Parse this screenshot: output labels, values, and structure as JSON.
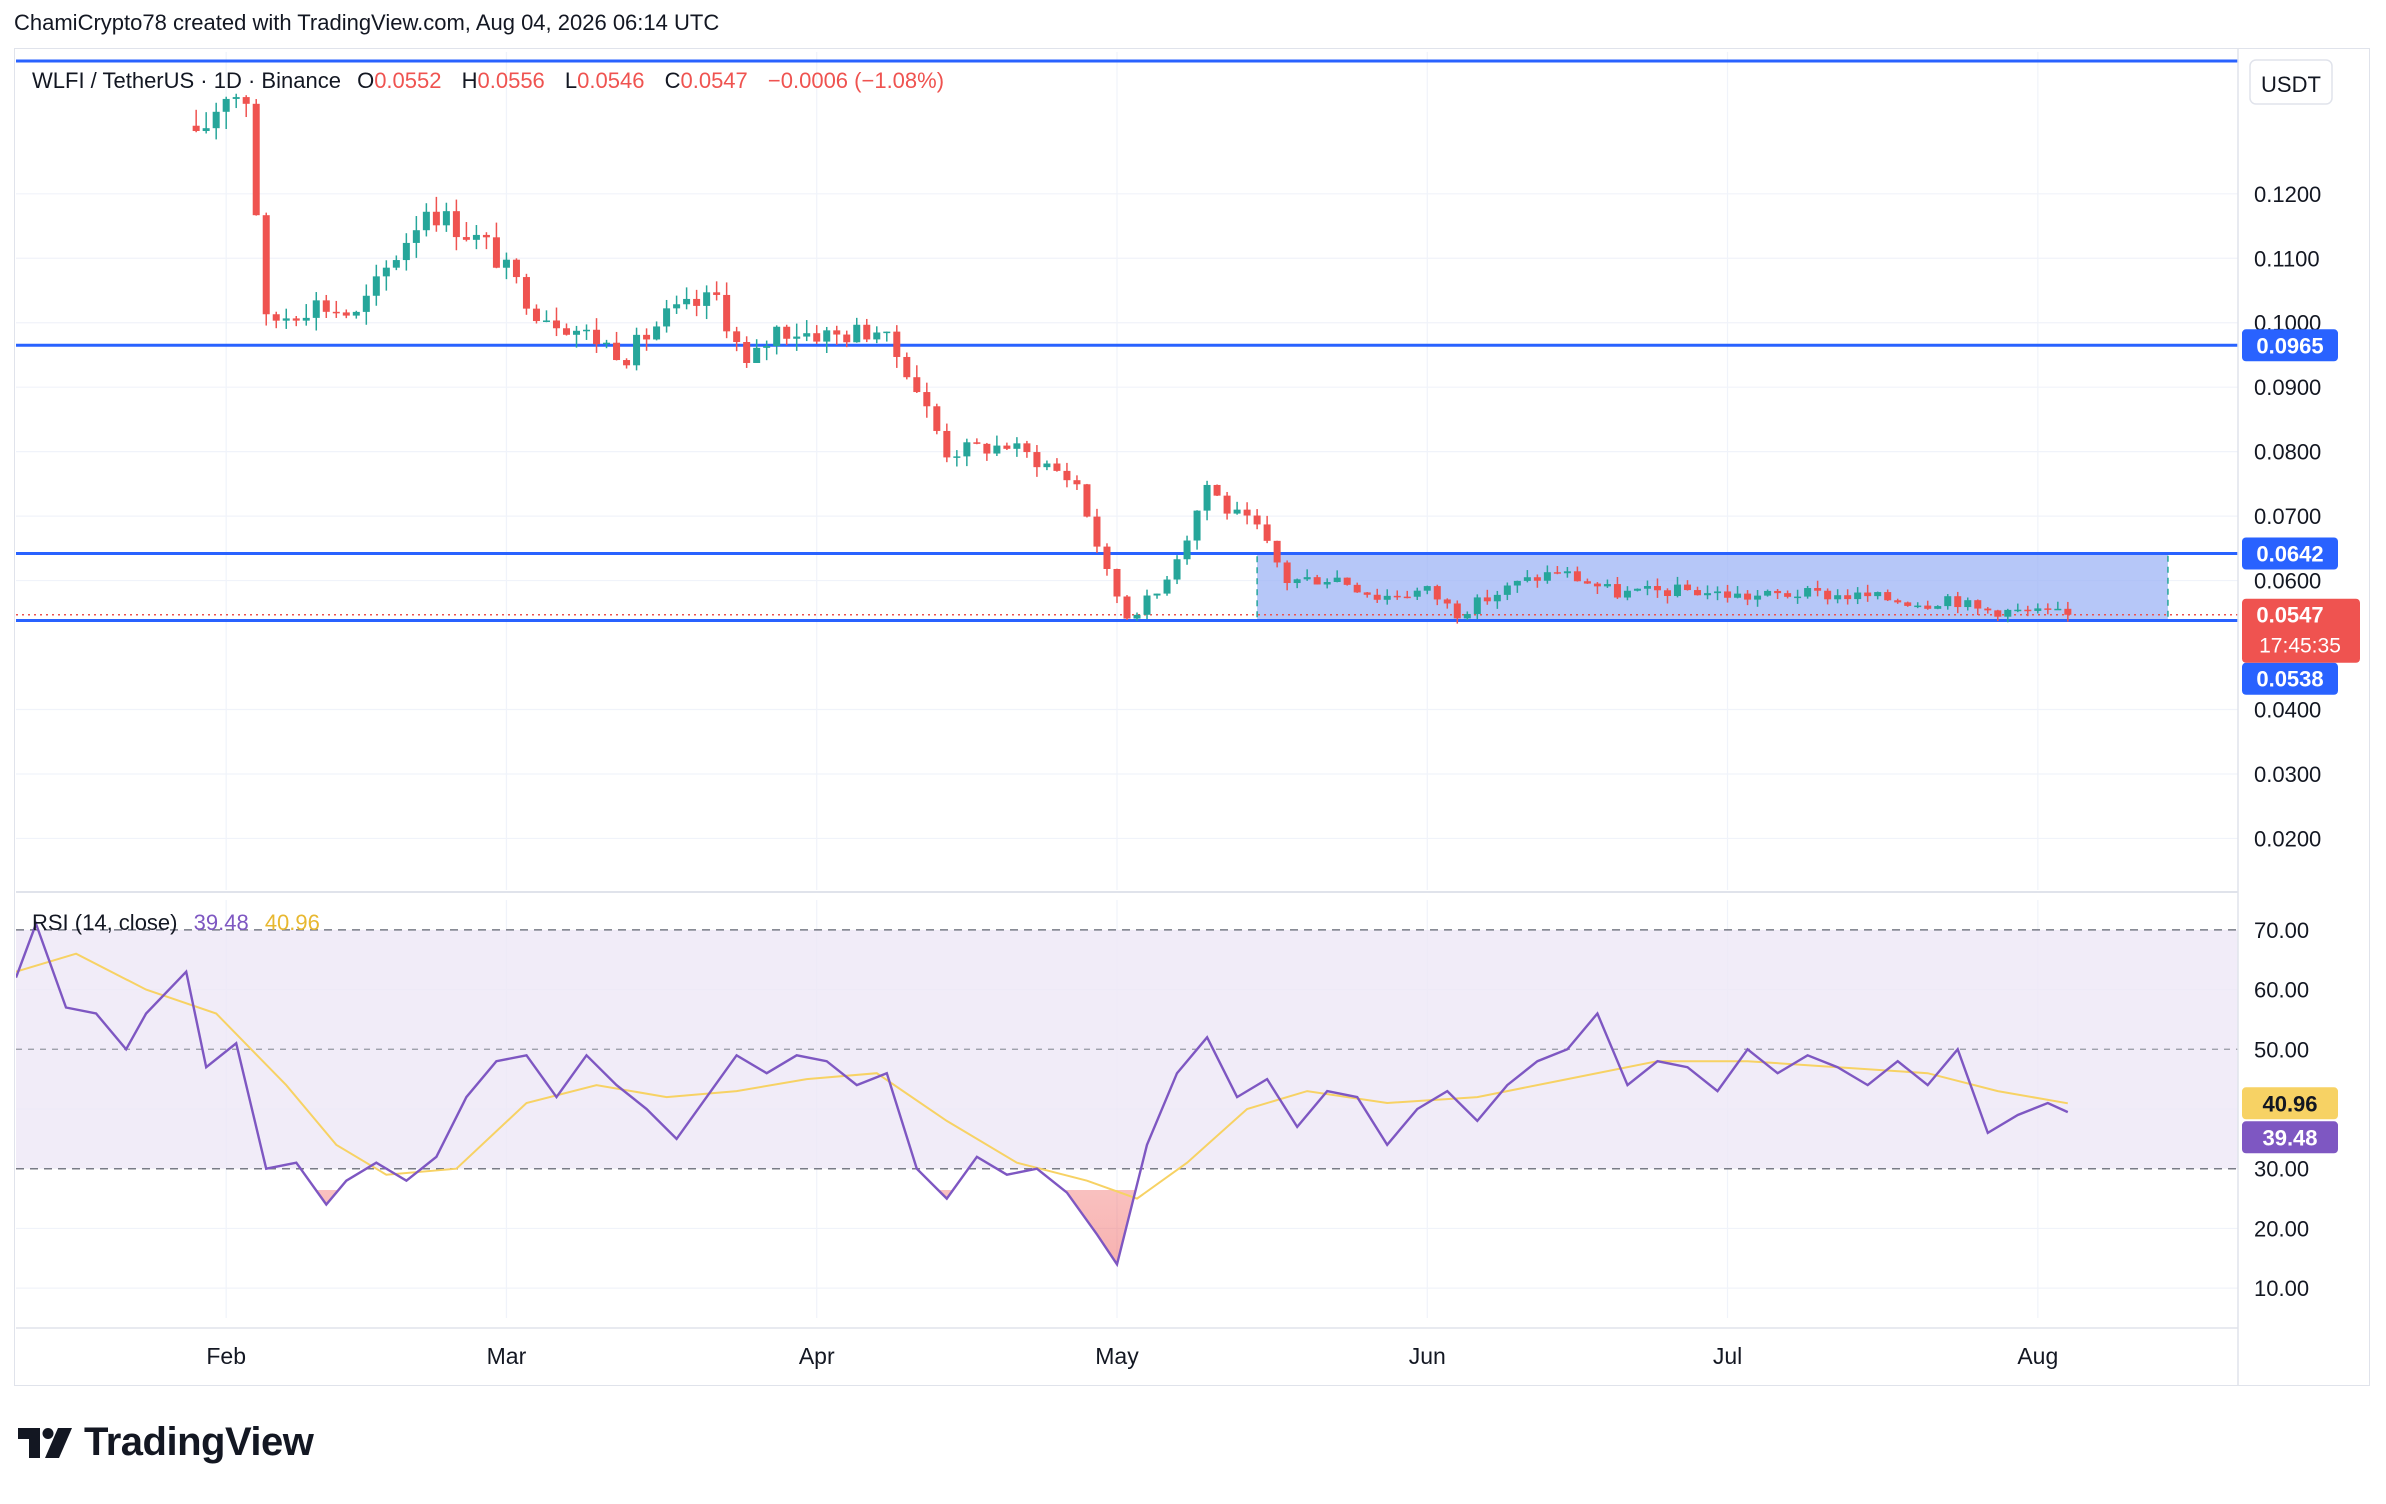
{
  "header": {
    "credit": "ChamiCrypto78 created with TradingView.com, Aug 04, 2026 06:14 UTC"
  },
  "legend": {
    "symbol": "WLFI / TetherUS · 1D · Binance",
    "o_label": "O",
    "o_value": "0.0552",
    "h_label": "H",
    "h_value": "0.0556",
    "l_label": "L",
    "l_value": "0.0546",
    "c_label": "C",
    "c_value": "0.0547",
    "change": "−0.0006 (−1.08%)"
  },
  "currency": "USDT",
  "brand": "TradingView",
  "colors": {
    "up": "#26a69a",
    "down": "#ef5350",
    "level": "#2962ff",
    "zone": "#9db4f5",
    "rsi_line": "#7e57c2",
    "rsi_ma": "#f7d264",
    "rsi_band": "#ede7f6"
  },
  "chart_data": [
    {
      "type": "candlestick",
      "title": "WLFI / TetherUS · 1D · Binance",
      "ylim": [
        0.012,
        0.142
      ],
      "y_ticks": [
        "0.1200",
        "0.1100",
        "0.1000",
        "0.0900",
        "0.0800",
        "0.0700",
        "0.0600",
        "0.0400",
        "0.0300",
        "0.0200"
      ],
      "y_tick_values": [
        0.12,
        0.11,
        0.1,
        0.09,
        0.08,
        0.07,
        0.06,
        0.04,
        0.03,
        0.02
      ],
      "x_ticks": [
        "Feb",
        "Mar",
        "Apr",
        "May",
        "Jun",
        "Jul",
        "Aug"
      ],
      "x_tick_dates": [
        "2026-02-01",
        "2026-03-01",
        "2026-04-01",
        "2026-05-01",
        "2026-06-01",
        "2026-07-01",
        "2026-08-01"
      ],
      "x_range": [
        "2026-01-11",
        "2026-08-21"
      ],
      "last_bar_date": "2026-08-04",
      "horizontal_levels": [
        0.1406,
        0.0965,
        0.0642,
        0.0538
      ],
      "level_labels": [
        {
          "value": 0.0965,
          "text": "0.0965",
          "bg": "#2962ff"
        },
        {
          "value": 0.0642,
          "text": "0.0642",
          "bg": "#2962ff"
        },
        {
          "value": 0.0538,
          "text": "0.0538",
          "bg": "#2962ff"
        }
      ],
      "last_price": {
        "value": 0.0547,
        "text": "0.0547",
        "countdown": "17:45:35",
        "bg": "#ef5350"
      },
      "range_box": {
        "from": "2026-05-15",
        "to": "2026-08-14",
        "top": 0.0642,
        "bottom": 0.0538
      },
      "close_anchors": [
        [
          "2026-01-29",
          0.128
        ],
        [
          "2026-02-01",
          0.136
        ],
        [
          "2026-02-03",
          0.135
        ],
        [
          "2026-02-05",
          0.1
        ],
        [
          "2026-02-10",
          0.103
        ],
        [
          "2026-02-14",
          0.101
        ],
        [
          "2026-02-19",
          0.113
        ],
        [
          "2026-02-21",
          0.118
        ],
        [
          "2026-02-27",
          0.112
        ],
        [
          "2026-03-04",
          0.102
        ],
        [
          "2026-03-08",
          0.099
        ],
        [
          "2026-03-13",
          0.095
        ],
        [
          "2026-03-17",
          0.101
        ],
        [
          "2026-03-22",
          0.104
        ],
        [
          "2026-03-25",
          0.093
        ],
        [
          "2026-03-28",
          0.099
        ],
        [
          "2026-04-03",
          0.098
        ],
        [
          "2026-04-07",
          0.099
        ],
        [
          "2026-04-10",
          0.093
        ],
        [
          "2026-04-14",
          0.08
        ],
        [
          "2026-04-20",
          0.081
        ],
        [
          "2026-04-24",
          0.078
        ],
        [
          "2026-04-27",
          0.075
        ],
        [
          "2026-04-30",
          0.061
        ],
        [
          "2026-05-02",
          0.0545
        ],
        [
          "2026-05-05",
          0.058
        ],
        [
          "2026-05-08",
          0.067
        ],
        [
          "2026-05-10",
          0.075
        ],
        [
          "2026-05-12",
          0.071
        ],
        [
          "2026-05-15",
          0.068
        ],
        [
          "2026-05-18",
          0.06
        ],
        [
          "2026-05-23",
          0.0605
        ],
        [
          "2026-05-27",
          0.0575
        ],
        [
          "2026-06-01",
          0.0585
        ],
        [
          "2026-06-04",
          0.055
        ],
        [
          "2026-06-10",
          0.0595
        ],
        [
          "2026-06-14",
          0.0615
        ],
        [
          "2026-06-20",
          0.058
        ],
        [
          "2026-06-27",
          0.0585
        ],
        [
          "2026-07-03",
          0.0575
        ],
        [
          "2026-07-08",
          0.058
        ],
        [
          "2026-07-15",
          0.0575
        ],
        [
          "2026-07-21",
          0.0565
        ],
        [
          "2026-07-23",
          0.0575
        ],
        [
          "2026-07-26",
          0.0555
        ],
        [
          "2026-08-01",
          0.055
        ],
        [
          "2026-08-04",
          0.0547
        ]
      ]
    },
    {
      "type": "line",
      "title": "RSI (14, close)",
      "values_text": {
        "rsi": "39.48",
        "ma": "40.96"
      },
      "ylim": [
        5,
        75
      ],
      "y_ticks": [
        "70.00",
        "60.00",
        "50.00",
        "40.00",
        "30.00",
        "20.00",
        "10.00"
      ],
      "y_tick_values": [
        70,
        60,
        50,
        40,
        30,
        20,
        10
      ],
      "band": [
        30,
        70
      ],
      "midline": 50,
      "last_values": [
        {
          "value": 40.96,
          "text": "40.96",
          "bg": "#f7d264",
          "fg": "#131722"
        },
        {
          "value": 39.48,
          "text": "39.48",
          "bg": "#7e57c2",
          "fg": "#ffffff"
        }
      ],
      "series": [
        {
          "name": "RSI",
          "color": "#7e57c2",
          "points": [
            [
              "2026-01-11",
              62
            ],
            [
              "2026-01-13",
              71
            ],
            [
              "2026-01-16",
              57
            ],
            [
              "2026-01-19",
              56
            ],
            [
              "2026-01-22",
              50
            ],
            [
              "2026-01-24",
              56
            ],
            [
              "2026-01-28",
              63
            ],
            [
              "2026-01-30",
              47
            ],
            [
              "2026-02-02",
              51
            ],
            [
              "2026-02-05",
              30
            ],
            [
              "2026-02-08",
              31
            ],
            [
              "2026-02-11",
              24
            ],
            [
              "2026-02-13",
              28
            ],
            [
              "2026-02-16",
              31
            ],
            [
              "2026-02-19",
              28
            ],
            [
              "2026-02-22",
              32
            ],
            [
              "2026-02-25",
              42
            ],
            [
              "2026-02-28",
              48
            ],
            [
              "2026-03-03",
              49
            ],
            [
              "2026-03-06",
              42
            ],
            [
              "2026-03-09",
              49
            ],
            [
              "2026-03-12",
              44
            ],
            [
              "2026-03-15",
              40
            ],
            [
              "2026-03-18",
              35
            ],
            [
              "2026-03-21",
              42
            ],
            [
              "2026-03-24",
              49
            ],
            [
              "2026-03-27",
              46
            ],
            [
              "2026-03-30",
              49
            ],
            [
              "2026-04-02",
              48
            ],
            [
              "2026-04-05",
              44
            ],
            [
              "2026-04-08",
              46
            ],
            [
              "2026-04-11",
              30
            ],
            [
              "2026-04-14",
              25
            ],
            [
              "2026-04-17",
              32
            ],
            [
              "2026-04-20",
              29
            ],
            [
              "2026-04-23",
              30
            ],
            [
              "2026-04-26",
              26
            ],
            [
              "2026-04-29",
              19
            ],
            [
              "2026-05-01",
              14
            ],
            [
              "2026-05-04",
              34
            ],
            [
              "2026-05-07",
              46
            ],
            [
              "2026-05-10",
              52
            ],
            [
              "2026-05-13",
              42
            ],
            [
              "2026-05-16",
              45
            ],
            [
              "2026-05-19",
              37
            ],
            [
              "2026-05-22",
              43
            ],
            [
              "2026-05-25",
              42
            ],
            [
              "2026-05-28",
              34
            ],
            [
              "2026-05-31",
              40
            ],
            [
              "2026-06-03",
              43
            ],
            [
              "2026-06-06",
              38
            ],
            [
              "2026-06-09",
              44
            ],
            [
              "2026-06-12",
              48
            ],
            [
              "2026-06-15",
              50
            ],
            [
              "2026-06-18",
              56
            ],
            [
              "2026-06-21",
              44
            ],
            [
              "2026-06-24",
              48
            ],
            [
              "2026-06-27",
              47
            ],
            [
              "2026-06-30",
              43
            ],
            [
              "2026-07-03",
              50
            ],
            [
              "2026-07-06",
              46
            ],
            [
              "2026-07-09",
              49
            ],
            [
              "2026-07-12",
              47
            ],
            [
              "2026-07-15",
              44
            ],
            [
              "2026-07-18",
              48
            ],
            [
              "2026-07-21",
              44
            ],
            [
              "2026-07-24",
              50
            ],
            [
              "2026-07-27",
              36
            ],
            [
              "2026-07-30",
              39
            ],
            [
              "2026-08-02",
              41
            ],
            [
              "2026-08-04",
              39.48
            ]
          ]
        },
        {
          "name": "RSI-based MA",
          "color": "#f7d264",
          "points": [
            [
              "2026-01-11",
              63
            ],
            [
              "2026-01-17",
              66
            ],
            [
              "2026-01-24",
              60
            ],
            [
              "2026-01-31",
              56
            ],
            [
              "2026-02-07",
              44
            ],
            [
              "2026-02-12",
              34
            ],
            [
              "2026-02-17",
              29
            ],
            [
              "2026-02-24",
              30
            ],
            [
              "2026-03-03",
              41
            ],
            [
              "2026-03-10",
              44
            ],
            [
              "2026-03-17",
              42
            ],
            [
              "2026-03-24",
              43
            ],
            [
              "2026-03-31",
              45
            ],
            [
              "2026-04-07",
              46
            ],
            [
              "2026-04-14",
              38
            ],
            [
              "2026-04-21",
              31
            ],
            [
              "2026-04-28",
              28
            ],
            [
              "2026-05-03",
              25
            ],
            [
              "2026-05-08",
              31
            ],
            [
              "2026-05-14",
              40
            ],
            [
              "2026-05-20",
              43
            ],
            [
              "2026-05-28",
              41
            ],
            [
              "2026-06-06",
              42
            ],
            [
              "2026-06-15",
              45
            ],
            [
              "2026-06-24",
              48
            ],
            [
              "2026-07-03",
              48
            ],
            [
              "2026-07-12",
              47
            ],
            [
              "2026-07-21",
              46
            ],
            [
              "2026-07-28",
              43
            ],
            [
              "2026-08-04",
              40.96
            ]
          ]
        }
      ]
    }
  ]
}
